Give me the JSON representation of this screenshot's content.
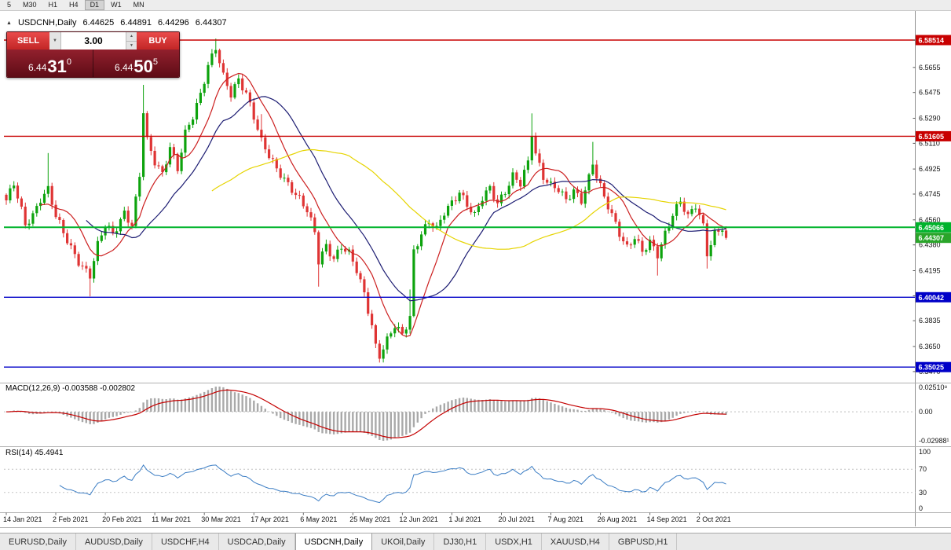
{
  "toolbar": {
    "timeframes": [
      {
        "label": "5",
        "active": false
      },
      {
        "label": "M30",
        "active": false
      },
      {
        "label": "H1",
        "active": false
      },
      {
        "label": "H4",
        "active": false
      },
      {
        "label": "D1",
        "active": true
      },
      {
        "label": "W1",
        "active": false
      },
      {
        "label": "MN",
        "active": false
      }
    ]
  },
  "icons": {
    "collapse": "▲",
    "dropdown": "▼",
    "spinner_up": "▲",
    "spinner_down": "▼"
  },
  "chart_header": {
    "symbol": "USDCNH,Daily",
    "open": "6.44625",
    "high": "6.44891",
    "low": "6.44296",
    "close": "6.44307"
  },
  "trade_widget": {
    "sell_label": "SELL",
    "buy_label": "BUY",
    "volume": "3.00",
    "sell_price_big": "6.44",
    "sell_price_pips": "31",
    "sell_price_sup": "0",
    "buy_price_big": "6.44",
    "buy_price_pips": "50",
    "buy_price_sup": "5"
  },
  "price_axis": {
    "ymax": 6.597,
    "ymin": 6.343,
    "ticks": [
      "6.5851",
      "6.5655",
      "6.5475",
      "6.5290",
      "6.5110",
      "6.4925",
      "6.4745",
      "6.4560",
      "6.4380",
      "6.4195",
      "6.4015",
      "6.3835",
      "6.3650",
      "6.3470"
    ]
  },
  "levels": [
    {
      "value": 6.58514,
      "label": "6.58514",
      "color": "#c80000",
      "width": 1.4
    },
    {
      "value": 6.51605,
      "label": "6.51605",
      "color": "#c80000",
      "width": 1.4
    },
    {
      "value": 6.45066,
      "label": "6.45066",
      "color": "#00b32c",
      "width": 2
    },
    {
      "value": 6.40042,
      "label": "6.40042",
      "color": "#0000c8",
      "width": 1.4
    },
    {
      "value": 6.35025,
      "label": "6.35025",
      "color": "#0000c8",
      "width": 1.4
    }
  ],
  "current_price": {
    "value": 6.44307,
    "label": "6.44307",
    "color": "#2aa52a"
  },
  "macd_panel": {
    "label": "MACD(12,26,9) -0.003588 -0.002802",
    "axis": [
      "0.02510⁸",
      "0.00",
      "-0.02988¹"
    ],
    "main_value": -0.003588,
    "signal_value": -0.002802
  },
  "rsi_panel": {
    "label": "RSI(14) 45.4941",
    "axis": [
      "100",
      "70",
      "30",
      "0"
    ],
    "levels": [
      70,
      30
    ],
    "value": 45.4941
  },
  "date_axis": [
    "14 Jan 2021",
    "2 Feb 2021",
    "20 Feb 2021",
    "11 Mar 2021",
    "30 Mar 2021",
    "17 Apr 2021",
    "6 May 2021",
    "25 May 2021",
    "12 Jun 2021",
    "1 Jul 2021",
    "20 Jul 2021",
    "7 Aug 2021",
    "26 Aug 2021",
    "14 Sep 2021",
    "2 Oct 2021"
  ],
  "tabs": {
    "items": [
      {
        "label": "EURUSD,Daily",
        "active": false
      },
      {
        "label": "AUDUSD,Daily",
        "active": false
      },
      {
        "label": "USDCHF,H4",
        "active": false
      },
      {
        "label": "USDCAD,Daily",
        "active": false
      },
      {
        "label": "USDCNH,Daily",
        "active": true
      },
      {
        "label": "UKOil,Daily",
        "active": false
      },
      {
        "label": "DJ30,H1",
        "active": false
      },
      {
        "label": "USDX,H1",
        "active": false
      },
      {
        "label": "XAUUSD,H4",
        "active": false
      },
      {
        "label": "GBPUSD,H1",
        "active": false
      }
    ]
  },
  "chart_data": {
    "type": "candlestick",
    "symbol": "USDCNH",
    "timeframe": "Daily",
    "title": "USDCNH,Daily",
    "ohlc_display": {
      "open": 6.44625,
      "high": 6.44891,
      "low": 6.44296,
      "close": 6.44307
    },
    "ylim": [
      6.343,
      6.597
    ],
    "num_candles": 190,
    "last_close": 6.44307,
    "colors": {
      "up": "#0da30d",
      "down": "#df3434"
    },
    "close_anchors": [
      [
        0,
        6.47
      ],
      [
        2,
        6.481
      ],
      [
        4,
        6.462
      ],
      [
        5,
        6.452
      ],
      [
        7,
        6.46
      ],
      [
        9,
        6.472
      ],
      [
        11,
        6.478
      ],
      [
        13,
        6.458
      ],
      [
        15,
        6.446
      ],
      [
        17,
        6.436
      ],
      [
        19,
        6.427
      ],
      [
        22,
        6.416
      ],
      [
        24,
        6.437
      ],
      [
        26,
        6.452
      ],
      [
        28,
        6.446
      ],
      [
        31,
        6.462
      ],
      [
        33,
        6.452
      ],
      [
        35,
        6.487
      ],
      [
        36,
        6.533
      ],
      [
        37,
        6.512
      ],
      [
        39,
        6.498
      ],
      [
        41,
        6.49
      ],
      [
        43,
        6.509
      ],
      [
        45,
        6.492
      ],
      [
        47,
        6.517
      ],
      [
        49,
        6.53
      ],
      [
        51,
        6.547
      ],
      [
        53,
        6.568
      ],
      [
        55,
        6.58
      ],
      [
        57,
        6.558
      ],
      [
        59,
        6.545
      ],
      [
        61,
        6.557
      ],
      [
        63,
        6.548
      ],
      [
        65,
        6.531
      ],
      [
        67,
        6.512
      ],
      [
        69,
        6.501
      ],
      [
        71,
        6.492
      ],
      [
        73,
        6.486
      ],
      [
        75,
        6.479
      ],
      [
        77,
        6.471
      ],
      [
        79,
        6.462
      ],
      [
        81,
        6.446
      ],
      [
        82,
        6.426
      ],
      [
        84,
        6.438
      ],
      [
        86,
        6.429
      ],
      [
        88,
        6.437
      ],
      [
        90,
        6.431
      ],
      [
        92,
        6.419
      ],
      [
        94,
        6.403
      ],
      [
        96,
        6.381
      ],
      [
        97,
        6.366
      ],
      [
        98,
        6.359
      ],
      [
        100,
        6.369
      ],
      [
        102,
        6.379
      ],
      [
        104,
        6.373
      ],
      [
        106,
        6.387
      ],
      [
        107,
        6.434
      ],
      [
        109,
        6.447
      ],
      [
        111,
        6.454
      ],
      [
        113,
        6.448
      ],
      [
        115,
        6.461
      ],
      [
        117,
        6.469
      ],
      [
        119,
        6.477
      ],
      [
        121,
        6.467
      ],
      [
        123,
        6.458
      ],
      [
        125,
        6.471
      ],
      [
        127,
        6.479
      ],
      [
        129,
        6.469
      ],
      [
        131,
        6.477
      ],
      [
        133,
        6.487
      ],
      [
        135,
        6.481
      ],
      [
        137,
        6.497
      ],
      [
        138,
        6.519
      ],
      [
        139,
        6.504
      ],
      [
        141,
        6.488
      ],
      [
        143,
        6.481
      ],
      [
        145,
        6.477
      ],
      [
        147,
        6.469
      ],
      [
        149,
        6.477
      ],
      [
        151,
        6.471
      ],
      [
        153,
        6.487
      ],
      [
        154,
        6.497
      ],
      [
        155,
        6.487
      ],
      [
        157,
        6.471
      ],
      [
        159,
        6.459
      ],
      [
        161,
        6.447
      ],
      [
        163,
        6.437
      ],
      [
        165,
        6.444
      ],
      [
        167,
        6.432
      ],
      [
        169,
        6.439
      ],
      [
        171,
        6.431
      ],
      [
        173,
        6.447
      ],
      [
        175,
        6.461
      ],
      [
        177,
        6.469
      ],
      [
        179,
        6.457
      ],
      [
        181,
        6.466
      ],
      [
        183,
        6.452
      ],
      [
        184,
        6.433
      ],
      [
        186,
        6.447
      ],
      [
        188,
        6.45
      ],
      [
        189,
        6.44307
      ]
    ],
    "wick_spikes": [
      {
        "i": 11,
        "high": 6.504
      },
      {
        "i": 22,
        "low": 6.401
      },
      {
        "i": 36,
        "high": 6.553
      },
      {
        "i": 55,
        "high": 6.5862
      },
      {
        "i": 67,
        "high": 6.532
      },
      {
        "i": 82,
        "low": 6.408
      },
      {
        "i": 98,
        "low": 6.3535
      },
      {
        "i": 106,
        "high": 6.406
      },
      {
        "i": 138,
        "high": 6.5325
      },
      {
        "i": 154,
        "high": 6.512
      },
      {
        "i": 171,
        "low": 6.416
      },
      {
        "i": 184,
        "low": 6.421
      }
    ],
    "moving_averages": [
      {
        "period": 10,
        "color": "#cc1f1f"
      },
      {
        "period": 22,
        "color": "#1c1c72"
      },
      {
        "period": 55,
        "color": "#e6d400"
      }
    ],
    "indicators": {
      "macd": {
        "fast": 12,
        "slow": 26,
        "signal": 9,
        "main": -0.003588,
        "signal_val": -0.002802,
        "axis_max": 0.025108,
        "axis_min": -0.029881
      },
      "rsi": {
        "period": 14,
        "value": 45.4941,
        "levels": [
          70,
          30
        ]
      }
    }
  }
}
